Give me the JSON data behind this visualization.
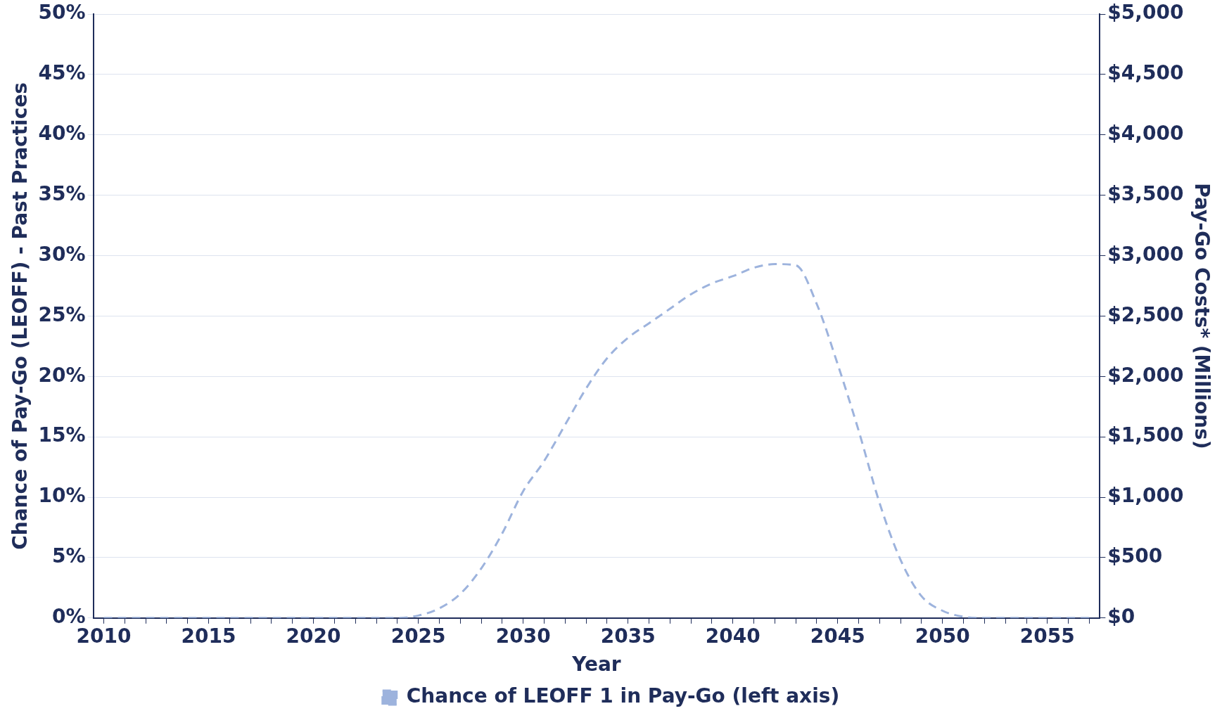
{
  "chart_data": {
    "type": "line",
    "xlabel": "Year",
    "ylabel": "Chance of Pay-Go (LEOFF) - Past Practices",
    "y2label": "Pay-Go Costs* (Millions)",
    "x": [
      2010,
      2011,
      2012,
      2013,
      2014,
      2015,
      2016,
      2017,
      2018,
      2019,
      2020,
      2021,
      2022,
      2023,
      2024,
      2025,
      2026,
      2027,
      2028,
      2029,
      2030,
      2031,
      2032,
      2033,
      2034,
      2035,
      2036,
      2037,
      2038,
      2039,
      2040,
      2041,
      2042,
      2043,
      2044,
      2045,
      2046,
      2047,
      2048,
      2049,
      2050,
      2051,
      2052,
      2053,
      2054,
      2055,
      2056,
      2057
    ],
    "series": [
      {
        "name": "Chance of LEOFF 1 in Pay-Go (left axis)",
        "color": "#9db3dd",
        "line_style": "dashed",
        "values": [
          0,
          0,
          0,
          0,
          0,
          0,
          0,
          0,
          0,
          0,
          0,
          0,
          0,
          0,
          0,
          0.2,
          0.8,
          2,
          4.1,
          7,
          10.5,
          13,
          16,
          19,
          21.5,
          23.2,
          24.4,
          25.6,
          26.8,
          27.7,
          28.3,
          29,
          29.3,
          29.2,
          26,
          21,
          15.5,
          9.5,
          4.8,
          1.8,
          0.6,
          0.1,
          0,
          0,
          0,
          0,
          0,
          0
        ]
      }
    ],
    "xlim": [
      2009.5,
      2057.5
    ],
    "xticks": [
      2010,
      {
        "value": 2011,
        "label": null
      },
      {
        "value": 2012,
        "label": null
      },
      {
        "value": 2013,
        "label": null
      },
      {
        "value": 2014,
        "label": null
      },
      2015,
      {
        "value": 2016,
        "label": null
      },
      {
        "value": 2017,
        "label": null
      },
      {
        "value": 2018,
        "label": null
      },
      {
        "value": 2019,
        "label": null
      },
      2020,
      {
        "value": 2021,
        "label": null
      },
      {
        "value": 2022,
        "label": null
      },
      {
        "value": 2023,
        "label": null
      },
      {
        "value": 2024,
        "label": null
      },
      2025,
      {
        "value": 2026,
        "label": null
      },
      {
        "value": 2027,
        "label": null
      },
      {
        "value": 2028,
        "label": null
      },
      {
        "value": 2029,
        "label": null
      },
      2030,
      {
        "value": 2031,
        "label": null
      },
      {
        "value": 2032,
        "label": null
      },
      {
        "value": 2033,
        "label": null
      },
      {
        "value": 2034,
        "label": null
      },
      2035,
      {
        "value": 2036,
        "label": null
      },
      {
        "value": 2037,
        "label": null
      },
      {
        "value": 2038,
        "label": null
      },
      {
        "value": 2039,
        "label": null
      },
      2040,
      {
        "value": 2041,
        "label": null
      },
      {
        "value": 2042,
        "label": null
      },
      {
        "value": 2043,
        "label": null
      },
      {
        "value": 2044,
        "label": null
      },
      2045,
      {
        "value": 2046,
        "label": null
      },
      {
        "value": 2047,
        "label": null
      },
      {
        "value": 2048,
        "label": null
      },
      {
        "value": 2049,
        "label": null
      },
      2050,
      {
        "value": 2051,
        "label": null
      },
      {
        "value": 2052,
        "label": null
      },
      {
        "value": 2053,
        "label": null
      },
      {
        "value": 2054,
        "label": null
      },
      2055,
      {
        "value": 2056,
        "label": null
      },
      {
        "value": 2057,
        "label": null
      }
    ],
    "ylim": [
      0,
      50
    ],
    "yticks": [
      {
        "value": 0,
        "label": "0%"
      },
      {
        "value": 5,
        "label": "5%"
      },
      {
        "value": 10,
        "label": "10%"
      },
      {
        "value": 15,
        "label": "15%"
      },
      {
        "value": 20,
        "label": "20%"
      },
      {
        "value": 25,
        "label": "25%"
      },
      {
        "value": 30,
        "label": "30%"
      },
      {
        "value": 35,
        "label": "35%"
      },
      {
        "value": 40,
        "label": "40%"
      },
      {
        "value": 45,
        "label": "45%"
      },
      {
        "value": 50,
        "label": "50%"
      }
    ],
    "y2lim": [
      0,
      5000
    ],
    "y2ticks": [
      {
        "value": 0,
        "label": "$0"
      },
      {
        "value": 500,
        "label": "$500"
      },
      {
        "value": 1000,
        "label": "$1,000"
      },
      {
        "value": 1500,
        "label": "$1,500"
      },
      {
        "value": 2000,
        "label": "$2,000"
      },
      {
        "value": 2500,
        "label": "$2,500"
      },
      {
        "value": 3000,
        "label": "$3,000"
      },
      {
        "value": 3500,
        "label": "$3,500"
      },
      {
        "value": 4000,
        "label": "$4,000"
      },
      {
        "value": 4500,
        "label": "$4,500"
      },
      {
        "value": 5000,
        "label": "$5,000"
      }
    ],
    "grid": "y",
    "legend": "bottom",
    "marker": "none"
  }
}
